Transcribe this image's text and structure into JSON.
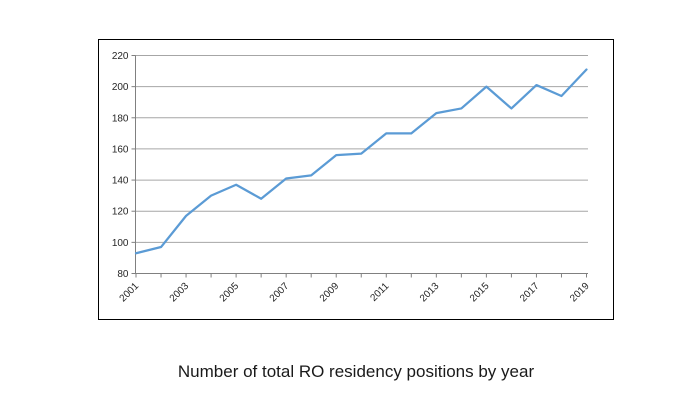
{
  "chart_data": {
    "type": "line",
    "title": "Number of total RO residency positions by year",
    "x": [
      2001,
      2002,
      2003,
      2004,
      2005,
      2006,
      2007,
      2008,
      2009,
      2010,
      2011,
      2012,
      2013,
      2014,
      2015,
      2016,
      2017,
      2018,
      2019
    ],
    "values": [
      93,
      97,
      117,
      130,
      137,
      128,
      141,
      143,
      156,
      157,
      170,
      170,
      183,
      186,
      200,
      186,
      201,
      194,
      211
    ],
    "xlabel": "",
    "ylabel": "",
    "ylim": [
      80,
      220
    ],
    "ytick_step": 20,
    "ytick_labels": [
      "80",
      "100",
      "120",
      "140",
      "160",
      "180",
      "200",
      "220"
    ],
    "xtick_labels": [
      "2001",
      "2003",
      "2005",
      "2007",
      "2009",
      "2011",
      "2013",
      "2015",
      "2017",
      "2019"
    ],
    "grid": "horizontal",
    "legend_position": "none",
    "colors": {
      "line": "#5B9BD5",
      "gridline": "#A6A6A6",
      "axis": "#808080",
      "tick_label": "#262626",
      "title": "#1a1a1a",
      "frame_border": "#000000",
      "background": "#ffffff"
    }
  }
}
